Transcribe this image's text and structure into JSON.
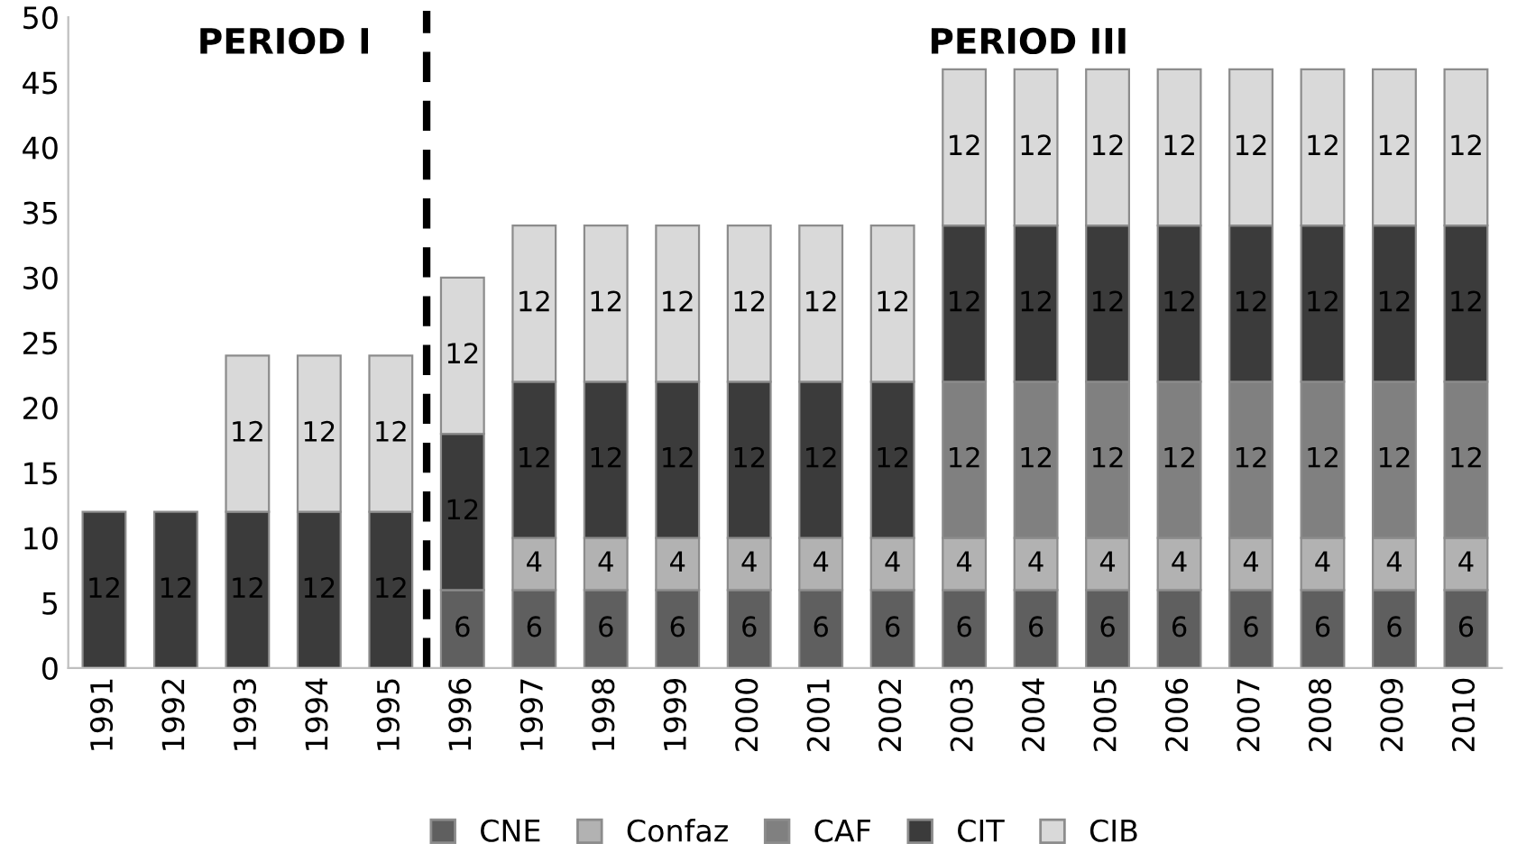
{
  "chart_data": {
    "type": "bar",
    "stacked": true,
    "x": [
      1991,
      1992,
      1993,
      1994,
      1995,
      1996,
      1997,
      1998,
      1999,
      2000,
      2001,
      2002,
      2003,
      2004,
      2005,
      2006,
      2007,
      2008,
      2009,
      2010
    ],
    "xlim": [
      1990.5,
      2010.5
    ],
    "xticks": [
      1991,
      1992,
      1993,
      1994,
      1995,
      1996,
      1997,
      1998,
      1999,
      2000,
      2001,
      2002,
      2003,
      2004,
      2005,
      2006,
      2007,
      2008,
      2009,
      2010
    ],
    "ylim": [
      0,
      50
    ],
    "yticks": [
      0,
      5,
      10,
      15,
      20,
      25,
      30,
      35,
      40,
      45,
      50
    ],
    "grid": false,
    "legend": "bottom",
    "data_labels": true,
    "series": [
      {
        "name": "CNE",
        "color": "#5f5f5f",
        "values": [
          null,
          null,
          null,
          null,
          null,
          6,
          6,
          6,
          6,
          6,
          6,
          6,
          6,
          6,
          6,
          6,
          6,
          6,
          6,
          6
        ]
      },
      {
        "name": "Confaz",
        "color": "#b2b2b2",
        "values": [
          null,
          null,
          null,
          null,
          null,
          null,
          4,
          4,
          4,
          4,
          4,
          4,
          4,
          4,
          4,
          4,
          4,
          4,
          4,
          4
        ]
      },
      {
        "name": "CAF",
        "color": "#808080",
        "values": [
          null,
          null,
          null,
          null,
          null,
          null,
          null,
          null,
          null,
          null,
          null,
          null,
          12,
          12,
          12,
          12,
          12,
          12,
          12,
          12
        ]
      },
      {
        "name": "CIT",
        "color": "#3b3b3b",
        "values": [
          12,
          12,
          12,
          12,
          12,
          12,
          12,
          12,
          12,
          12,
          12,
          12,
          12,
          12,
          12,
          12,
          12,
          12,
          12,
          12
        ]
      },
      {
        "name": "CIB",
        "color": "#d9d9d9",
        "values": [
          null,
          null,
          12,
          12,
          12,
          12,
          12,
          12,
          12,
          12,
          12,
          12,
          12,
          12,
          12,
          12,
          12,
          12,
          12,
          12
        ]
      }
    ],
    "ref_lines": [
      {
        "axis": "x",
        "value": 1995.5,
        "label": null,
        "color": "#000000",
        "line_style": "dashed"
      }
    ],
    "annotations": [
      "PERIOD I",
      "PERIOD III"
    ]
  }
}
